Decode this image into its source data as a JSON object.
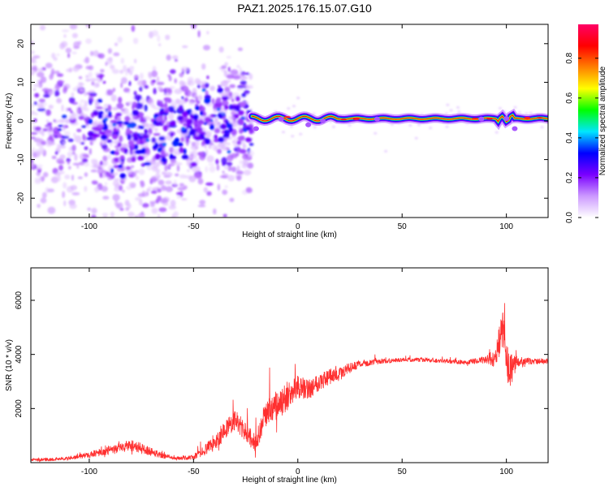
{
  "title": "PAZ1.2025.176.15.07.G10",
  "chart_data": [
    {
      "type": "heatmap",
      "xlabel": "Height of straight line (km)",
      "ylabel": "Frequency (Hz)",
      "xlim": [
        -128,
        120
      ],
      "ylim": [
        -25,
        25
      ],
      "xticks": [
        -100,
        -50,
        0,
        50,
        100
      ],
      "yticks": [
        -20,
        -10,
        0,
        10,
        20
      ],
      "colorbar": {
        "label": "Normalized spectral amplitude",
        "range": [
          0,
          0.97
        ],
        "ticks": [
          "0.0",
          "0.2",
          "0.4",
          "0.6",
          "0.8"
        ],
        "colormap": [
          "#ffffff",
          "#cc99ff",
          "#7a00ff",
          "#0000ff",
          "#00e6ff",
          "#00ff00",
          "#ffff00",
          "#ff8000",
          "#ff0000",
          "#ff0066"
        ]
      },
      "features": {
        "carrier_line": {
          "x_start": -22,
          "x_end": 120,
          "frequency": 0.6,
          "peak_amplitude": 0.9
        },
        "scatter_region": {
          "x_start": -128,
          "x_end": -22,
          "frequency_range": [
            -25,
            25
          ]
        }
      }
    },
    {
      "type": "line",
      "xlabel": "Height of straight line (km)",
      "ylabel": "SNR (10 * v/v)",
      "xlim": [
        -128,
        120
      ],
      "ylim": [
        0,
        7200
      ],
      "xticks": [
        -100,
        -50,
        0,
        50,
        100
      ],
      "yticks": [
        2000,
        4000,
        6000
      ],
      "series": [
        {
          "color": "#ff3030",
          "x": [
            -128,
            -110,
            -100,
            -90,
            -80,
            -70,
            -60,
            -50,
            -40,
            -35,
            -30,
            -25,
            -20,
            -15,
            -10,
            -5,
            0,
            5,
            10,
            15,
            20,
            25,
            30,
            40,
            50,
            60,
            70,
            80,
            90,
            95,
            98,
            100,
            102,
            105,
            110,
            120
          ],
          "values": [
            100,
            150,
            300,
            450,
            650,
            400,
            150,
            200,
            700,
            1200,
            1600,
            1100,
            700,
            1800,
            2100,
            2400,
            2800,
            2700,
            3000,
            3150,
            3300,
            3500,
            3650,
            3750,
            3800,
            3800,
            3750,
            3700,
            3800,
            3900,
            5000,
            3800,
            3300,
            3700,
            3750,
            3750
          ],
          "noise_amplitude": [
            80,
            100,
            180,
            250,
            350,
            250,
            100,
            150,
            450,
            550,
            600,
            600,
            500,
            800,
            900,
            800,
            650,
            600,
            550,
            500,
            400,
            300,
            200,
            150,
            120,
            120,
            120,
            130,
            200,
            600,
            1300,
            1200,
            1200,
            400,
            200,
            150
          ]
        }
      ]
    }
  ]
}
